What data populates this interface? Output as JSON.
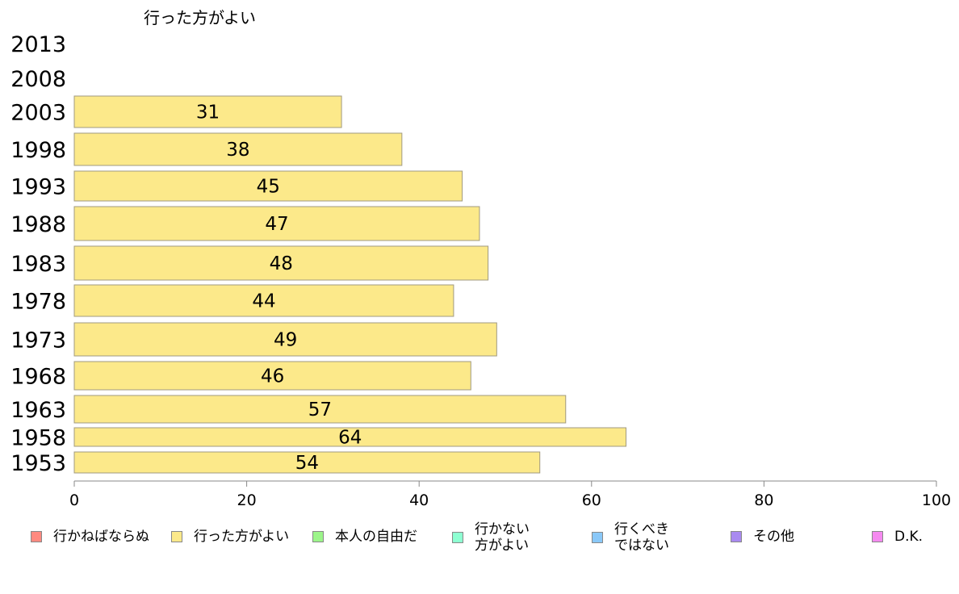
{
  "chart_data": {
    "type": "bar",
    "orientation": "horizontal",
    "title": "行った方がよい",
    "categories": [
      "2013",
      "2008",
      "2003",
      "1998",
      "1993",
      "1988",
      "1983",
      "1978",
      "1973",
      "1968",
      "1963",
      "1958",
      "1953"
    ],
    "series": [
      {
        "name": "行った方がよい",
        "color": "#fce98a",
        "values": [
          null,
          null,
          31,
          38,
          45,
          47,
          48,
          44,
          49,
          46,
          57,
          64,
          54
        ]
      }
    ],
    "xlim": [
      0,
      100
    ],
    "xticks": [
      "0",
      "20",
      "40",
      "60",
      "80",
      "100"
    ],
    "xlabel": "",
    "ylabel": "",
    "grid": false,
    "legend_position": "bottom"
  },
  "legend": [
    {
      "label": "行かねばならぬ",
      "color": "#ff8a80"
    },
    {
      "label": "行った方がよい",
      "color": "#fce98a"
    },
    {
      "label": "本人の自由だ",
      "color": "#9cf58a"
    },
    {
      "label": "行かない\n方がよい",
      "color": "#8effd2"
    },
    {
      "label": "行くべき\nではない",
      "color": "#8ac8f8"
    },
    {
      "label": "その他",
      "color": "#a98af0"
    },
    {
      "label": "D.K.",
      "color": "#f58af0"
    }
  ]
}
